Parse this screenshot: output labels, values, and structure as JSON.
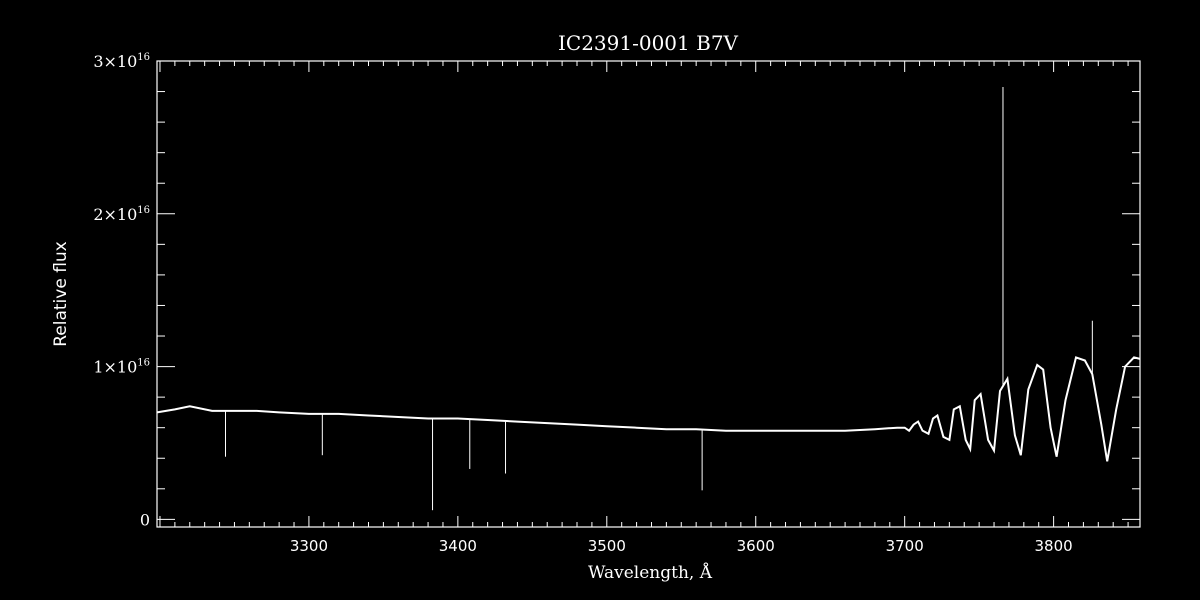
{
  "chart_data": {
    "type": "line",
    "title": "IC2391-0001   B7V",
    "xlabel": "Wavelength, Å",
    "ylabel": "Relative flux",
    "xlim": [
      3198,
      3858
    ],
    "ylim": [
      -0.05,
      3.0
    ],
    "y_scale_label": "×10¹⁶",
    "x_ticks": [
      3300,
      3400,
      3500,
      3600,
      3700,
      3800
    ],
    "x_tick_labels": [
      "3300",
      "3400",
      "3500",
      "3600",
      "3700",
      "3800"
    ],
    "y_ticks": [
      0,
      1,
      2,
      3
    ],
    "y_tick_labels": [
      {
        "mantissa": "0",
        "exp": ""
      },
      {
        "mantissa": "1×10",
        "exp": "16"
      },
      {
        "mantissa": "2×10",
        "exp": "16"
      },
      {
        "mantissa": "3×10",
        "exp": "16"
      }
    ],
    "grid": false,
    "colors": {
      "background": "#000000",
      "foreground": "#ffffff"
    },
    "series": [
      {
        "values": [
          [
            3198,
            0.7
          ],
          [
            3210,
            0.72
          ],
          [
            3220,
            0.74
          ],
          [
            3235,
            0.71
          ],
          [
            3250,
            0.71
          ],
          [
            3265,
            0.71
          ],
          [
            3280,
            0.7
          ],
          [
            3300,
            0.69
          ],
          [
            3320,
            0.69
          ],
          [
            3340,
            0.68
          ],
          [
            3360,
            0.67
          ],
          [
            3380,
            0.66
          ],
          [
            3400,
            0.66
          ],
          [
            3420,
            0.65
          ],
          [
            3440,
            0.64
          ],
          [
            3460,
            0.63
          ],
          [
            3480,
            0.62
          ],
          [
            3500,
            0.61
          ],
          [
            3520,
            0.6
          ],
          [
            3540,
            0.59
          ],
          [
            3560,
            0.59
          ],
          [
            3580,
            0.58
          ],
          [
            3600,
            0.58
          ],
          [
            3620,
            0.58
          ],
          [
            3640,
            0.58
          ],
          [
            3660,
            0.58
          ],
          [
            3680,
            0.59
          ],
          [
            3695,
            0.6
          ],
          [
            3700,
            0.6
          ],
          [
            3703,
            0.58
          ],
          [
            3706,
            0.62
          ],
          [
            3709,
            0.64
          ],
          [
            3712,
            0.58
          ],
          [
            3716,
            0.56
          ],
          [
            3719,
            0.66
          ],
          [
            3722,
            0.68
          ],
          [
            3726,
            0.54
          ],
          [
            3730,
            0.52
          ],
          [
            3733,
            0.72
          ],
          [
            3737,
            0.74
          ],
          [
            3741,
            0.52
          ],
          [
            3744,
            0.46
          ],
          [
            3747,
            0.78
          ],
          [
            3751,
            0.82
          ],
          [
            3756,
            0.52
          ],
          [
            3760,
            0.45
          ],
          [
            3764,
            0.84
          ],
          [
            3769,
            0.92
          ],
          [
            3774,
            0.55
          ],
          [
            3778,
            0.42
          ],
          [
            3783,
            0.85
          ],
          [
            3789,
            1.01
          ],
          [
            3793,
            0.98
          ],
          [
            3798,
            0.6
          ],
          [
            3802,
            0.41
          ],
          [
            3808,
            0.78
          ],
          [
            3815,
            1.06
          ],
          [
            3821,
            1.04
          ],
          [
            3826,
            0.95
          ],
          [
            3832,
            0.62
          ],
          [
            3836,
            0.38
          ],
          [
            3842,
            0.72
          ],
          [
            3848,
            1.0
          ],
          [
            3854,
            1.06
          ],
          [
            3858,
            1.05
          ]
        ]
      }
    ],
    "spikes": [
      {
        "x": 3244,
        "y": 0.41
      },
      {
        "x": 3309,
        "y": 0.42
      },
      {
        "x": 3383,
        "y": 0.06
      },
      {
        "x": 3408,
        "y": 0.33
      },
      {
        "x": 3432,
        "y": 0.3
      },
      {
        "x": 3564,
        "y": 0.19
      },
      {
        "x": 3766,
        "y": 2.83
      },
      {
        "x": 3826,
        "y": 1.3
      }
    ]
  }
}
